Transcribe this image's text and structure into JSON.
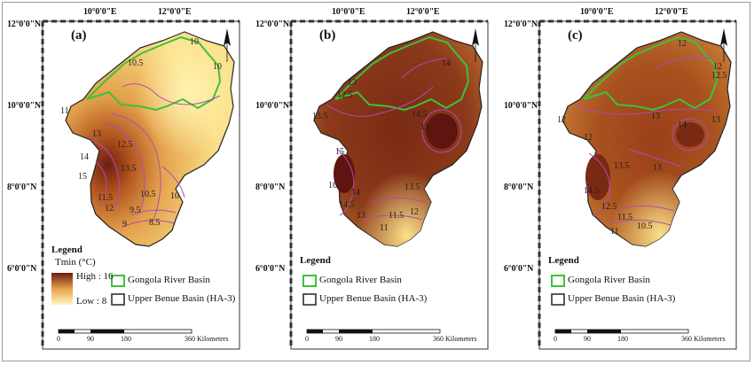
{
  "axes": {
    "lon_labels": [
      "10°0'0\"E",
      "12°0'0\"E"
    ],
    "lat_labels": [
      "12°0'0\"N",
      "10°0'0\"N",
      "8°0'0\"N",
      "6°0'0\"N"
    ]
  },
  "panels": [
    {
      "label": "(a)",
      "fill_colors": {
        "low": "#fbe7a1",
        "mid": "#e4a24c",
        "high": "#6e1d12"
      },
      "contours": [
        "10",
        "10.5",
        "11",
        "13",
        "12.5",
        "14",
        "13.5",
        "15",
        "11.5",
        "12",
        "10.5",
        "10",
        "9.5",
        "9",
        "8.5",
        "10"
      ],
      "legend": {
        "title": "Legend",
        "variable": "Tmin (°C)",
        "high_label": "High : 16",
        "low_label": "Low : 8",
        "basins": [
          "Gongola River Basin",
          "Upper Benue Basin (HA-3)"
        ]
      },
      "scale": {
        "ticks": [
          "0",
          "90",
          "180",
          "360"
        ],
        "unit": "Kilometers"
      }
    },
    {
      "label": "(b)",
      "contours": [
        "14",
        "13",
        "12.5",
        "13.5",
        "14.5",
        "15",
        "15",
        "16",
        "14.5",
        "14",
        "13",
        "13.5",
        "12",
        "11.5",
        "11"
      ],
      "legend": {
        "title": "Legend",
        "basins": [
          "Gongola River Basin",
          "Upper Benue Basin (HA-3)"
        ]
      },
      "scale": {
        "ticks": [
          "0",
          "90",
          "180",
          "360"
        ],
        "unit": "Kilometers"
      }
    },
    {
      "label": "(c)",
      "contours": [
        "12",
        "12.5",
        "12",
        "13",
        "12",
        "14",
        "13.5",
        "13",
        "14.5",
        "13",
        "12.5",
        "11.5",
        "11",
        "10.5",
        "12"
      ],
      "legend": {
        "title": "Legend",
        "basins": [
          "Gongola River Basin",
          "Upper Benue Basin (HA-3)"
        ]
      },
      "scale": {
        "ticks": [
          "0",
          "90",
          "180",
          "360"
        ],
        "unit": "Kilometers"
      }
    }
  ],
  "colors": {
    "gongola_outline": "#3cc23c",
    "contour": "#b04ab0",
    "basin_outline": "#222222"
  },
  "icons": {
    "north_arrow": "north-arrow-icon"
  }
}
